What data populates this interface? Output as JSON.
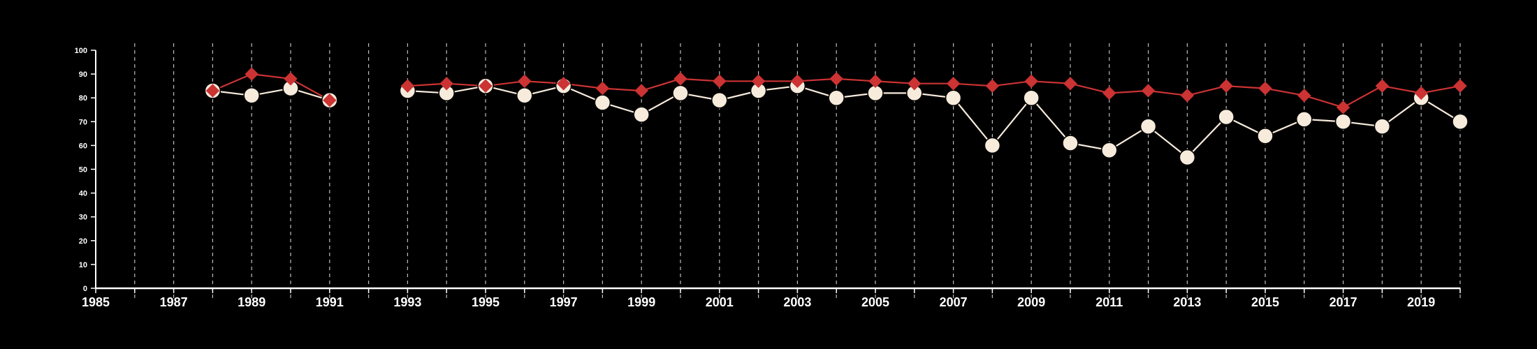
{
  "chart_data": {
    "type": "line",
    "title": "",
    "xlabel": "",
    "ylabel": "",
    "xlim": [
      1985,
      2020
    ],
    "ylim": [
      0,
      100
    ],
    "x_ticks": [
      "1985",
      "1987",
      "1989",
      "1991",
      "1993",
      "1995",
      "1997",
      "1999",
      "2001",
      "2003",
      "2005",
      "2007",
      "2009",
      "2011",
      "2013",
      "2015",
      "2017",
      "2019"
    ],
    "y_ticks": [
      "0",
      "10",
      "20",
      "30",
      "40",
      "50",
      "60",
      "70",
      "80",
      "90",
      "100"
    ],
    "grid": "vertical dashed lines at each year",
    "legend": "none",
    "background_color": "#000000",
    "axis_color": "#ffffff",
    "series": [
      {
        "color": "#cc3333",
        "marker": "diamond",
        "points": [
          [
            1988,
            83
          ],
          [
            1989,
            90
          ],
          [
            1990,
            88
          ],
          [
            1991,
            79
          ],
          [
            1993,
            85
          ],
          [
            1994,
            86
          ],
          [
            1995,
            85
          ],
          [
            1996,
            87
          ],
          [
            1997,
            86
          ],
          [
            1998,
            84
          ],
          [
            1999,
            83
          ],
          [
            2000,
            88
          ],
          [
            2001,
            87
          ],
          [
            2002,
            87
          ],
          [
            2003,
            87
          ],
          [
            2004,
            88
          ],
          [
            2005,
            87
          ],
          [
            2006,
            86
          ],
          [
            2007,
            86
          ],
          [
            2008,
            85
          ],
          [
            2009,
            87
          ],
          [
            2010,
            86
          ],
          [
            2011,
            82
          ],
          [
            2012,
            83
          ],
          [
            2013,
            81
          ],
          [
            2014,
            85
          ],
          [
            2015,
            84
          ],
          [
            2016,
            81
          ],
          [
            2017,
            76
          ],
          [
            2018,
            85
          ],
          [
            2019,
            82
          ],
          [
            2020,
            85
          ]
        ]
      },
      {
        "color": "#f7ebdc",
        "marker": "circle",
        "points": [
          [
            1988,
            83
          ],
          [
            1989,
            81
          ],
          [
            1990,
            84
          ],
          [
            1991,
            79
          ],
          [
            1993,
            83
          ],
          [
            1994,
            82
          ],
          [
            1995,
            85
          ],
          [
            1996,
            81
          ],
          [
            1997,
            85
          ],
          [
            1998,
            78
          ],
          [
            1999,
            73
          ],
          [
            2000,
            82
          ],
          [
            2001,
            79
          ],
          [
            2002,
            83
          ],
          [
            2003,
            85
          ],
          [
            2004,
            80
          ],
          [
            2005,
            82
          ],
          [
            2006,
            82
          ],
          [
            2007,
            80
          ],
          [
            2008,
            60
          ],
          [
            2009,
            80
          ],
          [
            2010,
            61
          ],
          [
            2011,
            58
          ],
          [
            2012,
            68
          ],
          [
            2013,
            55
          ],
          [
            2014,
            72
          ],
          [
            2015,
            64
          ],
          [
            2016,
            71
          ],
          [
            2017,
            70
          ],
          [
            2018,
            68
          ],
          [
            2019,
            80
          ],
          [
            2020,
            70
          ]
        ]
      }
    ]
  }
}
